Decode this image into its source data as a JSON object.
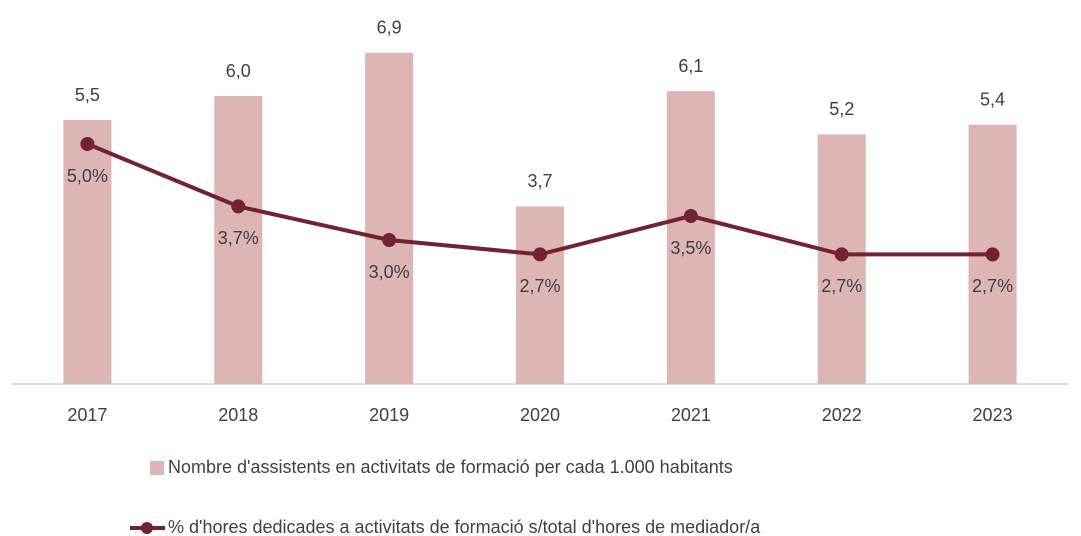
{
  "chart_data": {
    "type": "bar",
    "categories": [
      "2017",
      "2018",
      "2019",
      "2020",
      "2021",
      "2022",
      "2023"
    ],
    "series": [
      {
        "name": "Nombre d'assistents en activitats de formació per cada 1.000 habitants",
        "type": "bar",
        "color": "#ddb5b5",
        "values": [
          5.5,
          6.0,
          6.9,
          3.7,
          6.1,
          5.2,
          5.4
        ],
        "value_labels": [
          "5,5",
          "6,0",
          "6,9",
          "3,7",
          "6,1",
          "5,2",
          "5,4"
        ]
      },
      {
        "name": "% d'hores dedicades a activitats de formació s/total d'hores de mediador/a",
        "type": "line",
        "axis": "y2",
        "color": "#722230",
        "values": [
          5.0,
          3.7,
          3.0,
          2.7,
          3.5,
          2.7,
          2.7
        ],
        "value_labels": [
          "5,0%",
          "3,7%",
          "3,0%",
          "2,7%",
          "3,5%",
          "2,7%",
          "2,7%"
        ]
      }
    ],
    "ylim": [
      0,
      8
    ],
    "y2lim": [
      0,
      8
    ],
    "legend": "bottom"
  }
}
